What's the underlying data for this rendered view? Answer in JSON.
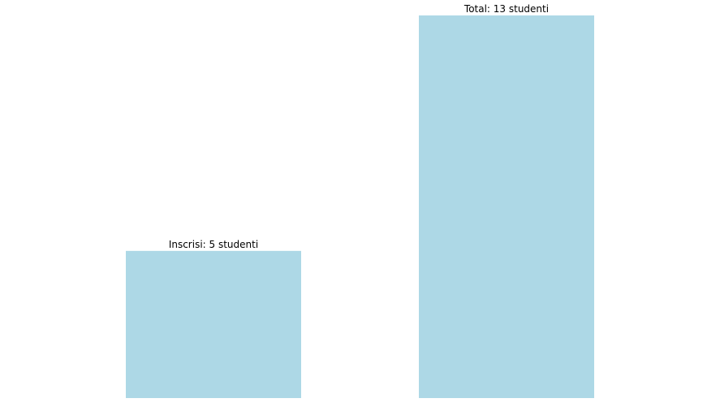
{
  "chart_data": {
    "type": "bar",
    "categories": [
      "Inscrisi",
      "Total"
    ],
    "values": [
      5,
      13
    ],
    "data_labels": [
      "Inscrisi: 5 studenti",
      "Total: 13 studenti"
    ],
    "ylim": [
      0,
      13
    ],
    "grid": false,
    "bar_color": "#add8e6"
  }
}
